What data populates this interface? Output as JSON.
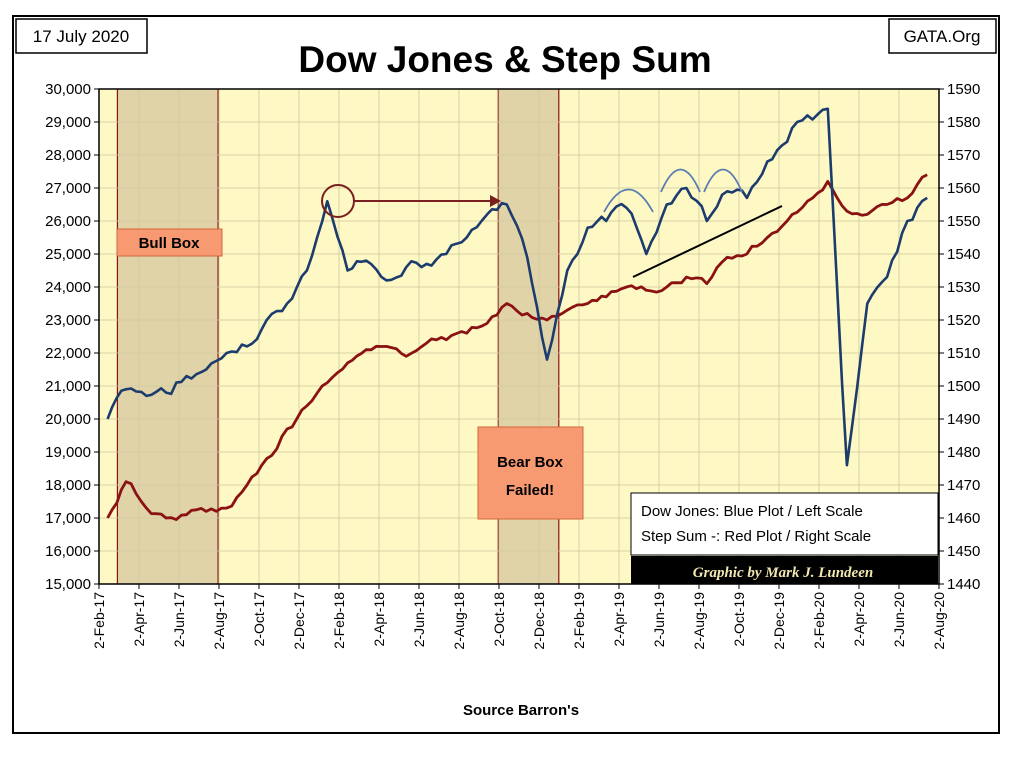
{
  "header": {
    "date": "17 July 2020",
    "site": "GATA.Org",
    "title": "Dow Jones & Step Sum"
  },
  "annotations": {
    "bull_box": "Bull Box",
    "bear_box_line1": "Bear Box",
    "bear_box_line2": "Failed!",
    "legend_line1": "Dow Jones: Blue Plot / Left Scale",
    "legend_line2": "Step Sum -: Red Plot / Right Scale",
    "credit": "Graphic by Mark J. Lundeen"
  },
  "xlabel": "Source Barron's",
  "colors": {
    "plot_bg": "#fdf8c4",
    "shade": "#e0d3a8",
    "dow": "#1c3c6e",
    "step": "#8b1212",
    "box_fill": "#f79a72",
    "box_border": "#d4663a",
    "arrow": "#7a1f1f",
    "overlay": "#5a7eb2"
  },
  "chart_data": {
    "type": "line",
    "title": "Dow Jones & Step Sum",
    "xlabel": "Source Barron's",
    "x_ticks": [
      "2-Feb-17",
      "2-Apr-17",
      "2-Jun-17",
      "2-Aug-17",
      "2-Oct-17",
      "2-Dec-17",
      "2-Feb-18",
      "2-Apr-18",
      "2-Jun-18",
      "2-Aug-18",
      "2-Oct-18",
      "2-Dec-18",
      "2-Feb-19",
      "2-Apr-19",
      "2-Jun-19",
      "2-Aug-19",
      "2-Oct-19",
      "2-Dec-19",
      "2-Feb-20",
      "2-Apr-20",
      "2-Jun-20",
      "2-Aug-20"
    ],
    "y_left": {
      "label": "Dow Jones",
      "lim": [
        15000,
        30000
      ],
      "ticks": [
        "15,000",
        "16,000",
        "17,000",
        "18,000",
        "19,000",
        "20,000",
        "21,000",
        "22,000",
        "23,000",
        "24,000",
        "25,000",
        "26,000",
        "27,000",
        "28,000",
        "29,000",
        "30,000"
      ]
    },
    "y_right": {
      "label": "Step Sum",
      "lim": [
        1440,
        1590
      ],
      "ticks": [
        "1440",
        "1450",
        "1460",
        "1470",
        "1480",
        "1490",
        "1500",
        "1510",
        "1520",
        "1530",
        "1540",
        "1550",
        "1560",
        "1570",
        "1580",
        "1590"
      ]
    },
    "shaded_periods": [
      {
        "label": "Bull Box",
        "start": "2017-03",
        "end": "2017-08"
      },
      {
        "label": "Bear Box Failed!",
        "start": "2018-10",
        "end": "2019-01"
      }
    ],
    "series": [
      {
        "name": "Dow Jones",
        "axis": "left",
        "x": [
          "2017-02",
          "2017-03",
          "2017-04",
          "2017-05",
          "2017-06",
          "2017-07",
          "2017-08",
          "2017-09",
          "2017-10",
          "2017-11",
          "2017-12",
          "2018-01",
          "2018-02",
          "2018-03",
          "2018-04",
          "2018-05",
          "2018-06",
          "2018-07",
          "2018-08",
          "2018-09",
          "2018-10",
          "2018-11",
          "2018-12",
          "2019-01",
          "2019-02",
          "2019-03",
          "2019-04",
          "2019-05",
          "2019-06",
          "2019-07",
          "2019-08",
          "2019-09",
          "2019-10",
          "2019-11",
          "2019-12",
          "2020-01",
          "2020-02",
          "2020-03",
          "2020-04",
          "2020-05",
          "2020-06",
          "2020-07"
        ],
        "values": [
          20000,
          20900,
          20700,
          20800,
          21300,
          21500,
          22000,
          22200,
          23000,
          23500,
          24500,
          26600,
          24500,
          24800,
          24200,
          24600,
          24700,
          25000,
          25500,
          26200,
          26500,
          24900,
          21800,
          24500,
          25800,
          26000,
          26400,
          25000,
          26500,
          27000,
          26000,
          26900,
          26700,
          27800,
          28400,
          29200,
          29400,
          18600,
          23500,
          24300,
          26000,
          26700
        ]
      },
      {
        "name": "Step Sum",
        "axis": "right",
        "x": [
          "2017-02",
          "2017-03",
          "2017-04",
          "2017-05",
          "2017-06",
          "2017-07",
          "2017-08",
          "2017-09",
          "2017-10",
          "2017-11",
          "2017-12",
          "2018-01",
          "2018-02",
          "2018-03",
          "2018-04",
          "2018-05",
          "2018-06",
          "2018-07",
          "2018-08",
          "2018-09",
          "2018-10",
          "2018-11",
          "2018-12",
          "2019-01",
          "2019-02",
          "2019-03",
          "2019-04",
          "2019-05",
          "2019-06",
          "2019-07",
          "2019-08",
          "2019-09",
          "2019-10",
          "2019-11",
          "2019-12",
          "2020-01",
          "2020-02",
          "2020-03",
          "2020-04",
          "2020-05",
          "2020-06",
          "2020-07"
        ],
        "values": [
          1460,
          1471,
          1463,
          1460,
          1461,
          1462,
          1463,
          1470,
          1478,
          1487,
          1494,
          1501,
          1507,
          1511,
          1512,
          1509,
          1513,
          1514,
          1516,
          1519,
          1525,
          1522,
          1520,
          1523,
          1525,
          1527,
          1530,
          1529,
          1530,
          1533,
          1531,
          1539,
          1540,
          1545,
          1550,
          1556,
          1562,
          1553,
          1552,
          1555,
          1557,
          1564
        ]
      }
    ]
  }
}
